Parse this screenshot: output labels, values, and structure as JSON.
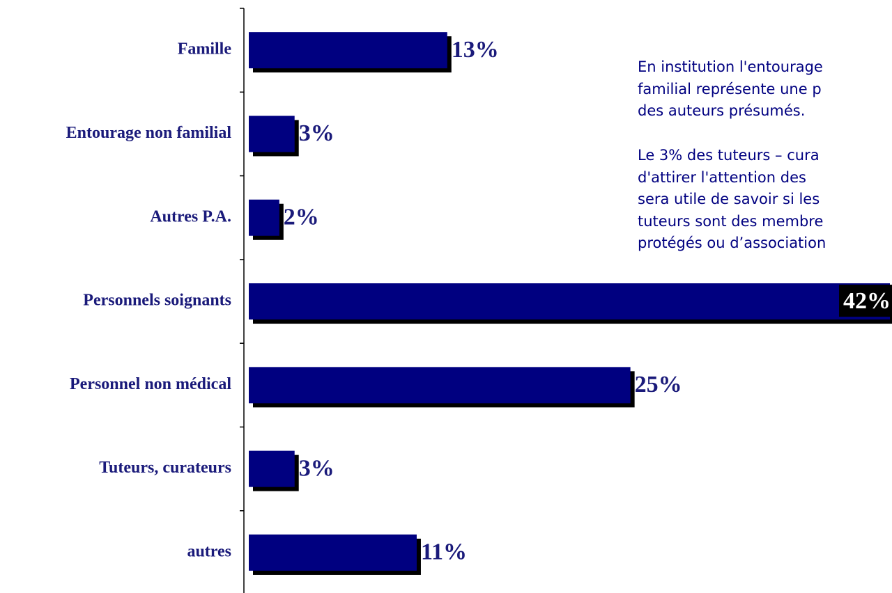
{
  "chart_data": {
    "type": "hbar",
    "categories": [
      "Famille",
      "Entourage non familial",
      "Autres P.A.",
      "Personnels soignants",
      "Personnel non médical",
      "Tuteurs, curateurs",
      "autres"
    ],
    "values": [
      13,
      3,
      2,
      42,
      25,
      3,
      11
    ],
    "value_labels": [
      "13%",
      "3%",
      "2%",
      "42%",
      "25%",
      "3%",
      "11%"
    ],
    "color": "#000080",
    "xlim": [
      0,
      42
    ],
    "annotation": [
      "En institution l'entourage",
      "familial représente une p",
      "des auteurs présumés.",
      "Le 3% des tuteurs – cura",
      "d'attirer l'attention des",
      "sera utile de savoir si les",
      "tuteurs sont des membre",
      "protégés ou d’association"
    ]
  }
}
